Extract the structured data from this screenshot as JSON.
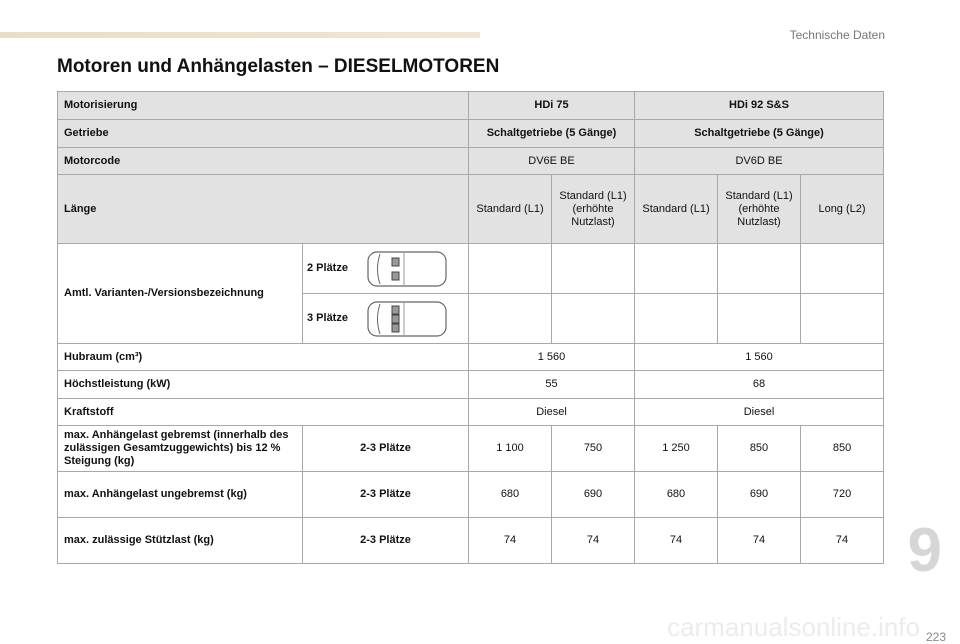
{
  "header": {
    "section": "Technische Daten",
    "title": "Motoren und Anhängelasten – DIESELMOTOREN"
  },
  "table": {
    "rows": [
      [
        "Motorisierung",
        "HDi 75",
        "HDi 92 S&S"
      ],
      [
        "Getriebe",
        "Schaltgetriebe (5 Gänge)",
        "Schaltgetriebe (5 Gänge)"
      ],
      [
        "Motorcode",
        "DV6E BE",
        "DV6D BE"
      ],
      [
        "Länge",
        "Standard (L1)",
        "Standard (L1) (erhöhte Nutzlast)",
        "Standard (L1)",
        "Standard (L1) (erhöhte Nutzlast)",
        "Long (L2)"
      ],
      [
        "Amtl. Varianten-/Versionsbezeichnung",
        "2 Plätze"
      ],
      [
        "3 Plätze"
      ],
      [
        "Hubraum (cm³)",
        "1 560",
        "1 560"
      ],
      [
        "Höchstleistung (kW)",
        "55",
        "68"
      ],
      [
        "Kraftstoff",
        "Diesel",
        "Diesel"
      ],
      [
        "max. Anhängelast gebremst (innerhalb des zulässigen Gesamtzuggewichts) bis 12 % Steigung (kg)",
        "2-3 Plätze",
        "1 100",
        "750",
        "1 250",
        "850",
        "850"
      ],
      [
        "max. Anhängelast ungebremst (kg)",
        "2-3 Plätze",
        "680",
        "690",
        "680",
        "690",
        "720"
      ],
      [
        "max. zulässige Stützlast (kg)",
        "2-3 Plätze",
        "74",
        "74",
        "74",
        "74",
        "74"
      ]
    ]
  },
  "footer": {
    "chapter": "9",
    "page": "223",
    "watermark": "carmanualsonline.info"
  }
}
